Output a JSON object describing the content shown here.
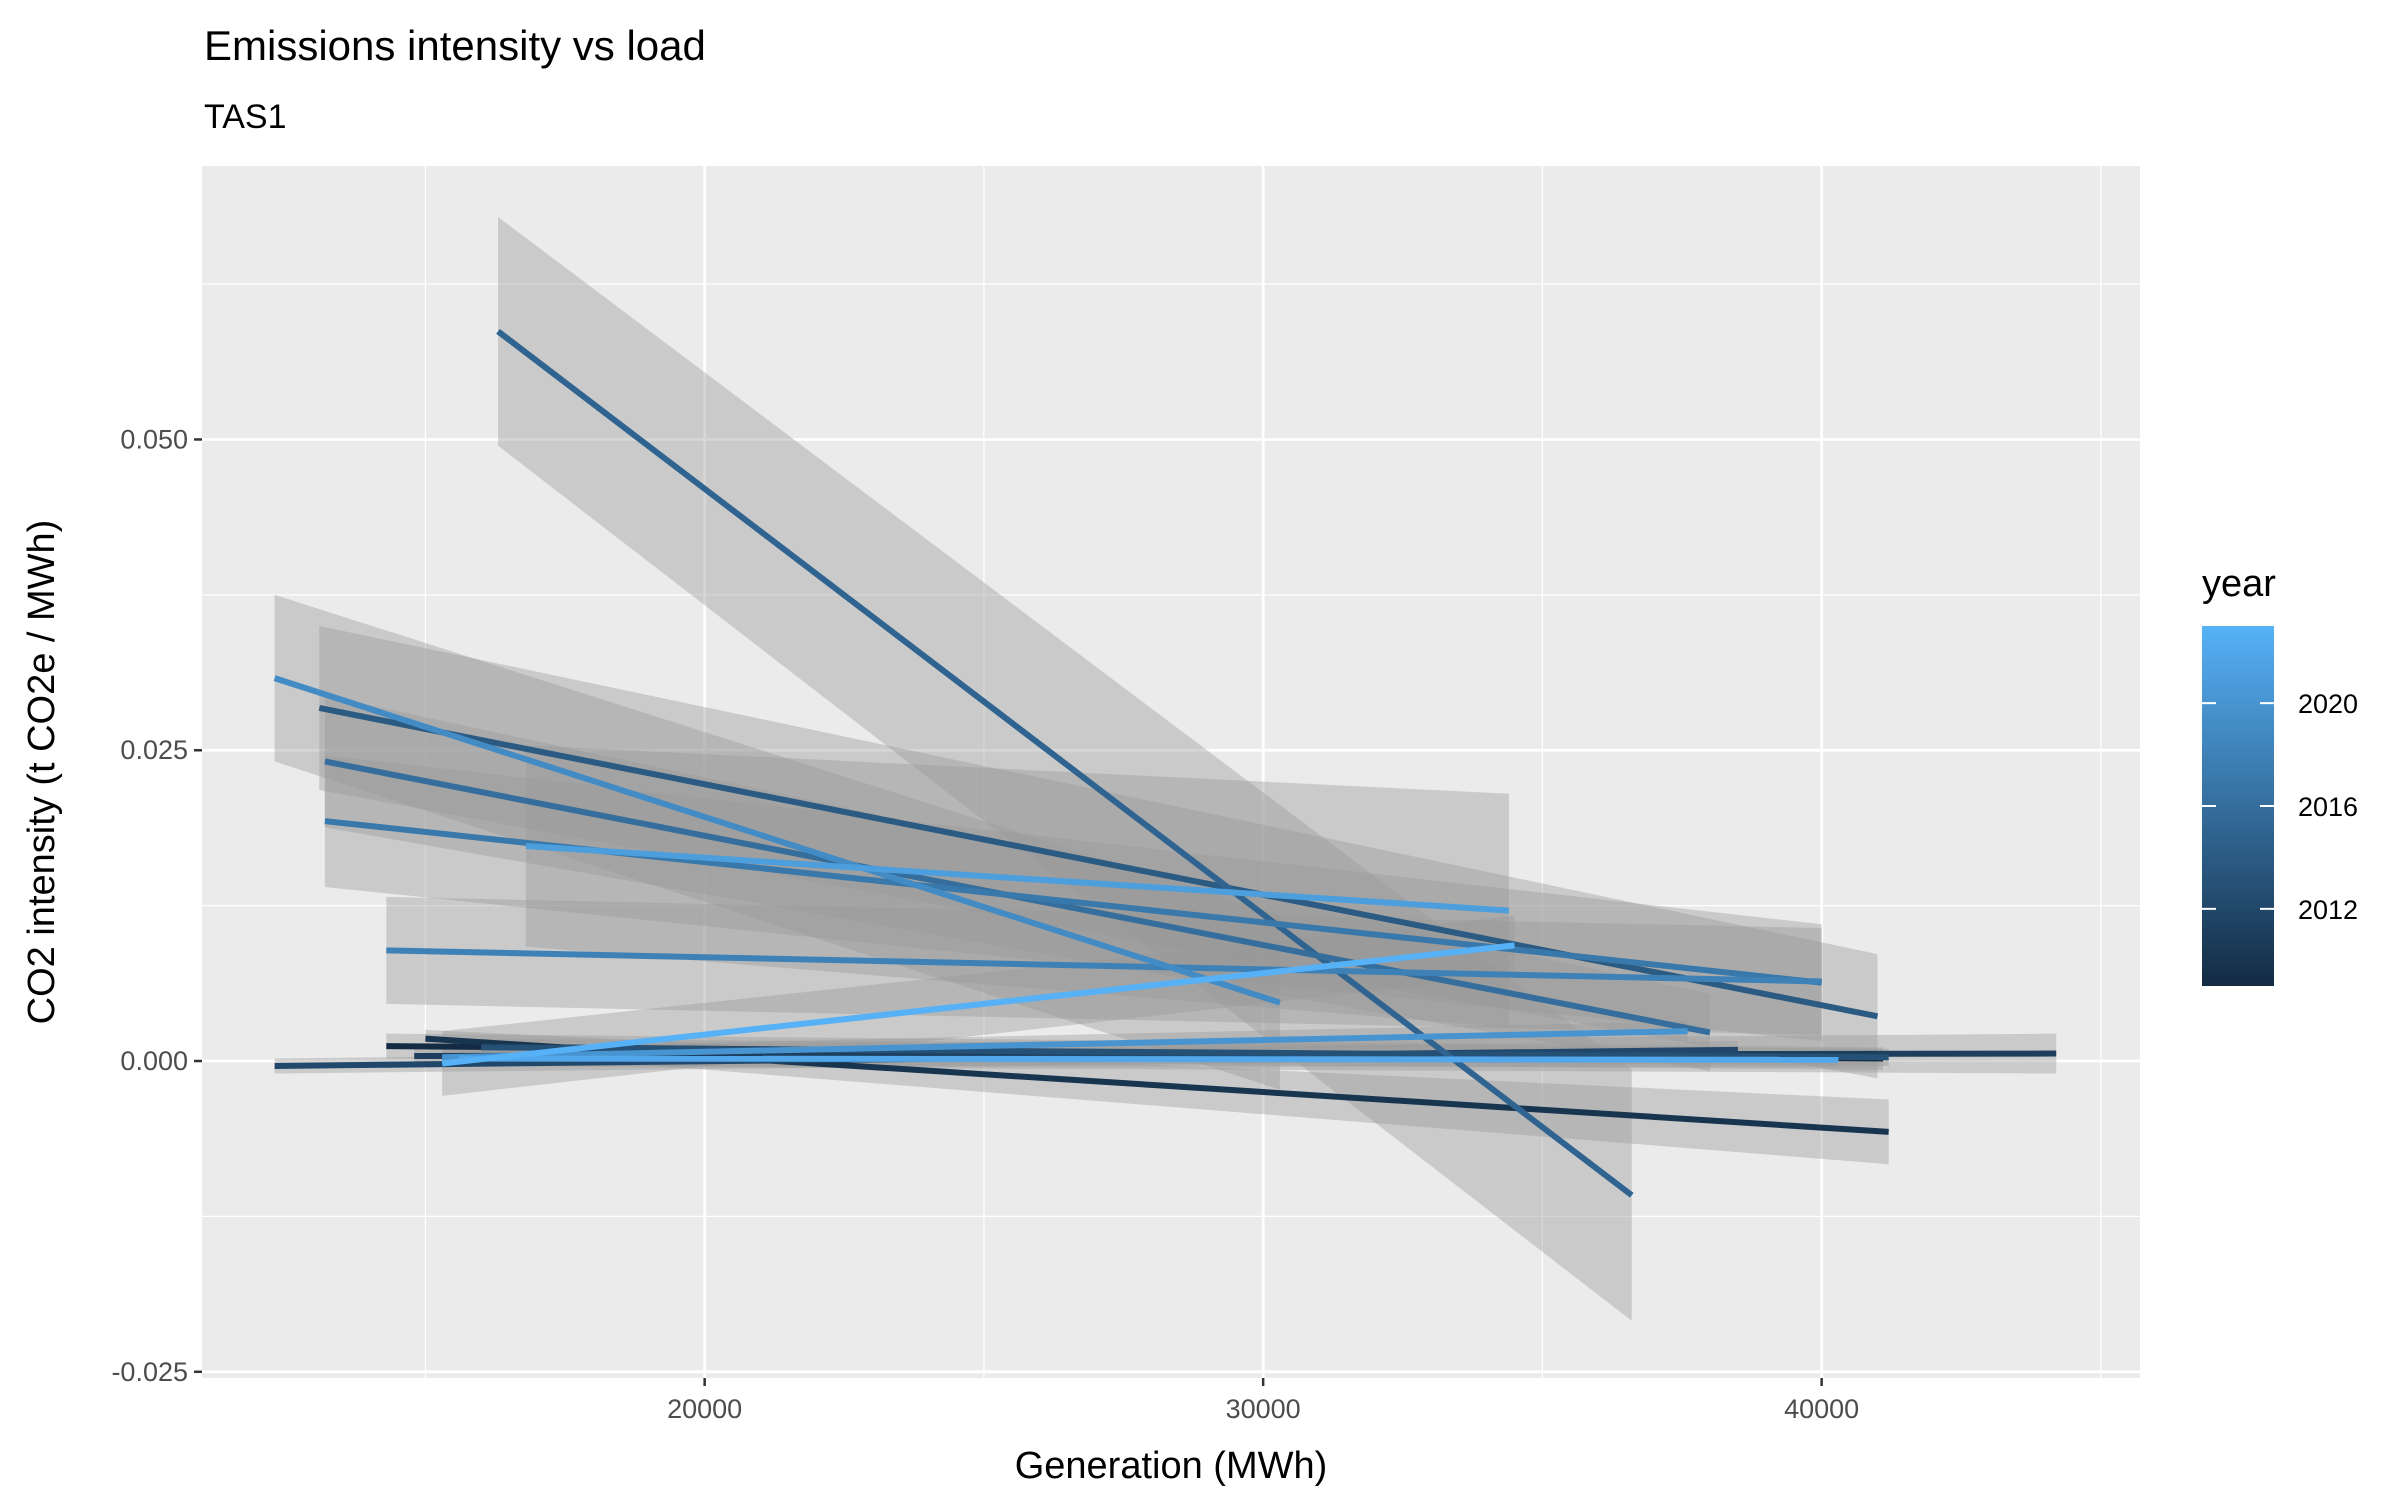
{
  "chart_data": {
    "type": "line",
    "title": "Emissions intensity vs load",
    "subtitle": "TAS1",
    "xlabel": "Generation (MWh)",
    "ylabel": "CO2 intensity (t CO2e / MWh)",
    "xlim": [
      11000,
      45700
    ],
    "ylim": [
      -0.0255,
      0.072
    ],
    "x_ticks": [
      20000,
      30000,
      40000
    ],
    "x_tick_labels": [
      "20000",
      "30000",
      "40000"
    ],
    "y_ticks": [
      -0.025,
      0.0,
      0.025,
      0.05
    ],
    "y_tick_labels": [
      "-0.025",
      "0.000",
      "0.025",
      "0.050"
    ],
    "grid": true,
    "legend": {
      "title": "year",
      "position": "right",
      "type": "colorbar",
      "range": [
        2009,
        2023
      ],
      "breaks": [
        2012,
        2016,
        2020
      ],
      "break_labels": [
        "2012",
        "2016",
        "2020"
      ],
      "low_color": "#132B43",
      "high_color": "#56B1F7"
    },
    "band_color": "#999999",
    "panel_background": "#EBEBEB",
    "series": [
      {
        "year": 2009,
        "x": [
          14300,
          41100
        ],
        "y": [
          0.0012,
          0.0002
        ],
        "ci_low": [
          0.0002,
          -0.0007
        ],
        "ci_high": [
          0.0022,
          0.0011
        ]
      },
      {
        "year": 2010,
        "x": [
          15000,
          41200
        ],
        "y": [
          0.0018,
          -0.0057
        ],
        "ci_low": [
          0.0011,
          -0.0083
        ],
        "ci_high": [
          0.0025,
          -0.0031
        ]
      },
      {
        "year": 2011,
        "x": [
          14800,
          44200
        ],
        "y": [
          0.0004,
          0.0006
        ],
        "ci_low": [
          -0.0004,
          -0.001
        ],
        "ci_high": [
          0.0012,
          0.0022
        ]
      },
      {
        "year": 2012,
        "x": [
          12300,
          38500
        ],
        "y": [
          -0.0004,
          0.0009
        ],
        "ci_low": [
          -0.001,
          0.0002
        ],
        "ci_high": [
          0.0002,
          0.0016
        ]
      },
      {
        "year": 2013,
        "x": [
          16000,
          41200
        ],
        "y": [
          0.0011,
          0.0003
        ],
        "ci_low": [
          0.0004,
          -0.0004
        ],
        "ci_high": [
          0.0018,
          0.001
        ]
      },
      {
        "year": 2014,
        "x": [
          13100,
          41000
        ],
        "y": [
          0.0284,
          0.0036
        ],
        "ci_low": [
          0.0218,
          -0.0014
        ],
        "ci_high": [
          0.035,
          0.0086
        ]
      },
      {
        "year": 2015,
        "x": [
          16300,
          36600
        ],
        "y": [
          0.0587,
          -0.0108
        ],
        "ci_low": [
          0.0495,
          -0.0209
        ],
        "ci_high": [
          0.0679,
          -0.0007
        ]
      },
      {
        "year": 2016,
        "x": [
          13200,
          38000
        ],
        "y": [
          0.0241,
          0.0023
        ],
        "ci_low": [
          0.0188,
          -0.0008
        ],
        "ci_high": [
          0.0294,
          0.0054
        ]
      },
      {
        "year": 2017,
        "x": [
          13200,
          40000
        ],
        "y": [
          0.0193,
          0.0063
        ],
        "ci_low": [
          0.014,
          0.0016
        ],
        "ci_high": [
          0.0246,
          0.011
        ]
      },
      {
        "year": 2018,
        "x": [
          14300,
          40000
        ],
        "y": [
          0.0089,
          0.0064
        ],
        "ci_low": [
          0.0046,
          0.0021
        ],
        "ci_high": [
          0.0132,
          0.0107
        ]
      },
      {
        "year": 2019,
        "x": [
          12300,
          30300
        ],
        "y": [
          0.0308,
          0.0047
        ],
        "ci_low": [
          0.0241,
          -0.0023
        ],
        "ci_high": [
          0.0375,
          0.0117
        ]
      },
      {
        "year": 2020,
        "x": [
          15300,
          37600
        ],
        "y": [
          0.0003,
          0.0024
        ],
        "ci_low": [
          -0.0004,
          0.0016
        ],
        "ci_high": [
          0.001,
          0.0032
        ]
      },
      {
        "year": 2021,
        "x": [
          16800,
          34400
        ],
        "y": [
          0.0173,
          0.0121
        ],
        "ci_low": [
          0.0092,
          0.0027
        ],
        "ci_high": [
          0.0254,
          0.0215
        ]
      },
      {
        "year": 2022,
        "x": [
          15600,
          40300
        ],
        "y": [
          0.0002,
          0.0001
        ],
        "ci_low": [
          -0.0004,
          -0.0005
        ],
        "ci_high": [
          0.0008,
          0.0007
        ]
      },
      {
        "year": 2023,
        "x": [
          15300,
          34500
        ],
        "y": [
          -0.0002,
          0.0093
        ],
        "ci_low": [
          -0.0028,
          0.0069
        ],
        "ci_high": [
          0.0024,
          0.0117
        ]
      }
    ]
  }
}
